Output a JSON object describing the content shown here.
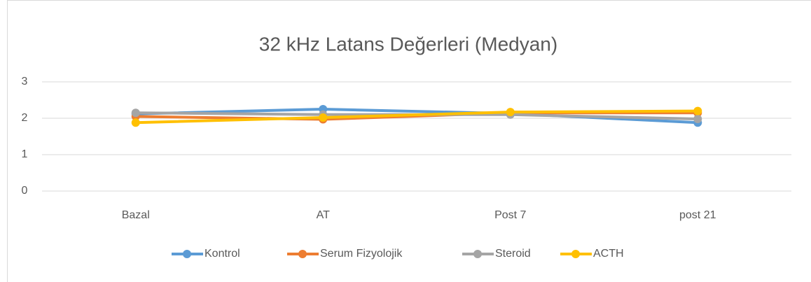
{
  "chart_data": {
    "type": "line",
    "title": "32 kHz Latans Değerleri (Medyan)",
    "categories": [
      "Bazal",
      "AT",
      "Post 7",
      "post 21"
    ],
    "series": [
      {
        "name": "Kontrol",
        "color": "#5b9bd5",
        "values": [
          2.12,
          2.25,
          2.13,
          1.88
        ]
      },
      {
        "name": "Serum Fizyolojik",
        "color": "#ed7d31",
        "values": [
          2.05,
          1.97,
          2.15,
          2.15
        ]
      },
      {
        "name": "Steroid",
        "color": "#a5a5a5",
        "values": [
          2.15,
          2.1,
          2.1,
          1.98
        ]
      },
      {
        "name": "ACTH",
        "color": "#ffc000",
        "values": [
          1.88,
          2.02,
          2.17,
          2.2
        ]
      }
    ],
    "ylim": [
      0,
      3
    ],
    "yticks": [
      0,
      1,
      2,
      3
    ],
    "grid": true,
    "legend": "bottom"
  }
}
